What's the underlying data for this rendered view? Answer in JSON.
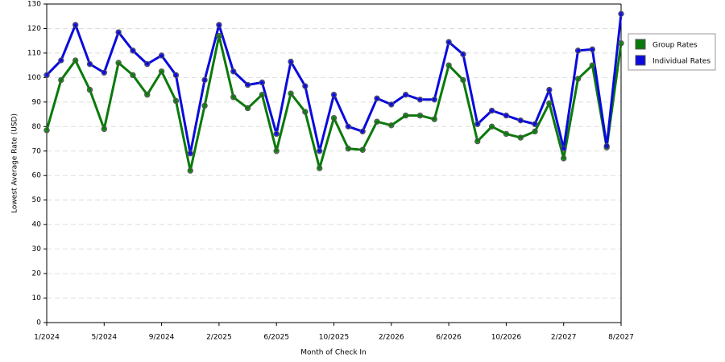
{
  "chart_data": {
    "type": "line",
    "x_label": "Month of Check In",
    "y_label": "Lowest Average Rate (USD)",
    "categories": [
      "1/2024",
      null,
      null,
      null,
      "5/2024",
      null,
      null,
      null,
      "9/2024",
      null,
      null,
      null,
      "2/2025",
      null,
      null,
      null,
      "6/2025",
      null,
      null,
      null,
      "10/2025",
      null,
      null,
      null,
      "2/2026",
      null,
      null,
      null,
      "6/2026",
      null,
      null,
      null,
      "10/2026",
      null,
      null,
      null,
      "2/2027",
      null,
      null,
      null,
      "8/2027"
    ],
    "series": [
      {
        "name": "Group Rates",
        "color": "#0a7a0a",
        "values": [
          78.5,
          99,
          107,
          95,
          79,
          106,
          101,
          93,
          102.5,
          90.5,
          62,
          88.5,
          117,
          92,
          87.5,
          93,
          70,
          93.5,
          86,
          63,
          83.5,
          71,
          70.5,
          82,
          80.5,
          84.5,
          84.5,
          83,
          105,
          99,
          74,
          80,
          77,
          75.5,
          78,
          89.5,
          67,
          99.5,
          105,
          71.5,
          114
        ]
      },
      {
        "name": "Individual Rates",
        "color": "#0a0adc",
        "values": [
          101,
          107,
          121.5,
          105.5,
          102,
          118.5,
          111,
          105.5,
          109,
          101,
          69,
          99,
          121.5,
          102.5,
          97,
          98,
          77,
          106.5,
          96.5,
          70,
          93,
          80,
          78,
          91.5,
          89,
          93,
          91,
          91,
          114.5,
          109.5,
          81,
          86.5,
          84.5,
          82.5,
          81,
          95,
          71,
          111,
          111.5,
          72,
          126
        ]
      }
    ],
    "ylim": [
      0,
      130
    ],
    "yticks": [
      0,
      10,
      20,
      30,
      40,
      50,
      60,
      70,
      80,
      90,
      100,
      110,
      120,
      130
    ],
    "grid": true,
    "legend": "right"
  }
}
